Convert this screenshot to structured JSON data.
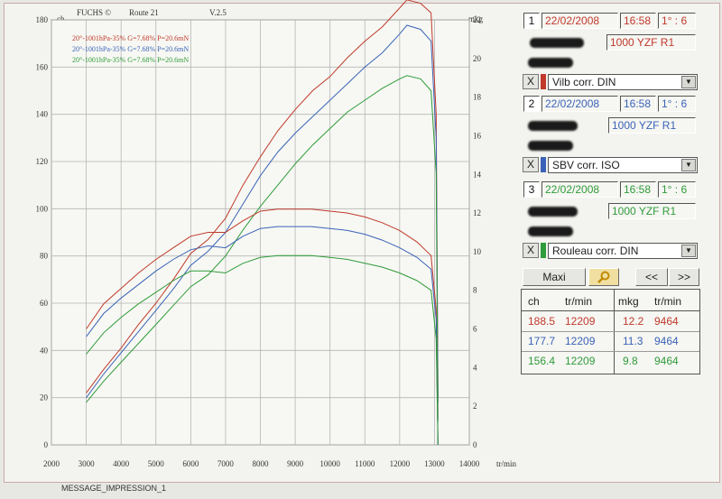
{
  "header": {
    "brand": "FUCHS ©",
    "route": "Route 21",
    "version": "V.2.5",
    "left_unit": "ch",
    "right_unit": "mkg",
    "x_unit": "tr/min"
  },
  "footer": "MESSAGE_IMPRESSION_1",
  "colors": {
    "red": "#c0392b",
    "blue": "#3a63b8",
    "green": "#2f9b3a"
  },
  "chart_data": {
    "type": "line",
    "title": "",
    "xlabel": "tr/min",
    "ylabel_left": "ch",
    "ylabel_right": "mkg",
    "xlim": [
      2000,
      14000
    ],
    "ylim_left": [
      0,
      180
    ],
    "ylim_right": [
      0,
      22
    ],
    "x_ticks": [
      2000,
      3000,
      4000,
      5000,
      6000,
      7000,
      8000,
      9000,
      10000,
      11000,
      12000,
      13000,
      14000
    ],
    "y_ticks_left": [
      0,
      20,
      40,
      60,
      80,
      100,
      120,
      140,
      160,
      180
    ],
    "y_ticks_right": [
      0,
      2,
      4,
      6,
      8,
      10,
      12,
      14,
      16,
      18,
      20,
      22
    ],
    "grid": true,
    "legend": [
      {
        "text": "20°-1001hPa-35% G=7.68% P=20.6mN",
        "color": "#c0392b"
      },
      {
        "text": "20°-1001hPa-35% G=7.68% P=20.6mN",
        "color": "#3a63b8"
      },
      {
        "text": "20°-1001hPa-35% G=7.68% P=20.6mN",
        "color": "#2f9b3a"
      }
    ],
    "series": [
      {
        "kind": "power",
        "axis": "left",
        "color": "#c0392b",
        "x": [
          3000,
          3500,
          4000,
          4500,
          5000,
          5500,
          6000,
          6500,
          7000,
          7500,
          8000,
          8500,
          9000,
          9500,
          10000,
          10500,
          11000,
          11500,
          12000,
          12209,
          12600,
          12900,
          13050,
          13100
        ],
        "y": [
          22,
          32,
          41,
          51,
          60,
          70,
          81,
          87,
          96,
          110,
          122,
          133,
          142,
          150,
          156,
          164,
          171,
          177,
          185,
          188.5,
          187,
          183,
          140,
          20
        ]
      },
      {
        "kind": "power",
        "axis": "left",
        "color": "#3a63b8",
        "x": [
          3000,
          3500,
          4000,
          4500,
          5000,
          5500,
          6000,
          6500,
          7000,
          7500,
          8000,
          8500,
          9000,
          9500,
          10000,
          10500,
          11000,
          11500,
          12000,
          12209,
          12600,
          12900,
          13050,
          13100
        ],
        "y": [
          20,
          30,
          39,
          48,
          57,
          66,
          76,
          82,
          90,
          102,
          114,
          124,
          132,
          139,
          146,
          153,
          160,
          166,
          174,
          177.7,
          176,
          171,
          130,
          18
        ]
      },
      {
        "kind": "power",
        "axis": "left",
        "color": "#2f9b3a",
        "x": [
          3000,
          3500,
          4000,
          4500,
          5000,
          5500,
          6000,
          6500,
          7000,
          7500,
          8000,
          8500,
          9000,
          9500,
          10000,
          10500,
          11000,
          11500,
          12000,
          12209,
          12600,
          12900,
          13050,
          13100
        ],
        "y": [
          18,
          27,
          35,
          43,
          51,
          59,
          67,
          72,
          80,
          91,
          101,
          110,
          119,
          127,
          134,
          141,
          146,
          151,
          155,
          156.4,
          155,
          150,
          115,
          10
        ]
      },
      {
        "kind": "torque",
        "axis": "right",
        "color": "#c0392b",
        "x": [
          3000,
          3500,
          4000,
          4500,
          5000,
          5500,
          6000,
          6500,
          7000,
          7500,
          8000,
          8500,
          9000,
          9464,
          10000,
          10500,
          11000,
          11500,
          12000,
          12500,
          12900,
          13050,
          13100
        ],
        "y": [
          6,
          7.3,
          8.1,
          8.9,
          9.6,
          10.2,
          10.8,
          11.0,
          11.0,
          11.6,
          12.1,
          12.2,
          12.2,
          12.2,
          12.1,
          12.0,
          11.8,
          11.5,
          11.1,
          10.5,
          9.8,
          7,
          0
        ]
      },
      {
        "kind": "torque",
        "axis": "right",
        "color": "#3a63b8",
        "x": [
          3000,
          3500,
          4000,
          4500,
          5000,
          5500,
          6000,
          6500,
          7000,
          7500,
          8000,
          8500,
          9000,
          9464,
          10000,
          10500,
          11000,
          11500,
          12000,
          12500,
          12900,
          13050,
          13100
        ],
        "y": [
          5.6,
          6.8,
          7.6,
          8.3,
          9.0,
          9.6,
          10.1,
          10.3,
          10.2,
          10.8,
          11.2,
          11.3,
          11.3,
          11.3,
          11.2,
          11.1,
          10.9,
          10.6,
          10.2,
          9.7,
          9.1,
          6.5,
          0
        ]
      },
      {
        "kind": "torque",
        "axis": "right",
        "color": "#2f9b3a",
        "x": [
          3000,
          3500,
          4000,
          4500,
          5000,
          5500,
          6000,
          6500,
          7000,
          7500,
          8000,
          8500,
          9000,
          9464,
          10000,
          10500,
          11000,
          11500,
          12000,
          12500,
          12900,
          13050,
          13100
        ],
        "y": [
          4.7,
          5.8,
          6.6,
          7.3,
          7.9,
          8.5,
          9.0,
          9.0,
          8.9,
          9.4,
          9.7,
          9.8,
          9.8,
          9.8,
          9.7,
          9.6,
          9.4,
          9.2,
          8.9,
          8.5,
          8.0,
          5.5,
          0
        ]
      }
    ]
  },
  "panel": {
    "runs": [
      {
        "num": "1",
        "date": "22/02/2008",
        "time": "16:58",
        "ratio": "1° : 6",
        "model": "1000 YZF R1",
        "correction": "Vilb corr. DIN",
        "color": "#c0392b"
      },
      {
        "num": "2",
        "date": "22/02/2008",
        "time": "16:58",
        "ratio": "1° : 6",
        "model": "1000 YZF R1",
        "correction": "SBV corr. ISO",
        "color": "#3a63b8"
      },
      {
        "num": "3",
        "date": "22/02/2008",
        "time": "16:58",
        "ratio": "1° : 6",
        "model": "1000 YZF R1",
        "correction": "Rouleau corr. DIN",
        "color": "#2f9b3a"
      }
    ],
    "close_label": "X",
    "buttons": {
      "maxi": "Maxi",
      "prev": "<<",
      "next": ">>"
    },
    "table": {
      "headers": [
        "ch",
        "tr/min",
        "mkg",
        "tr/min"
      ],
      "rows": [
        {
          "ch": "188.5",
          "ch_rpm": "12209",
          "mkg": "12.2",
          "mkg_rpm": "9464",
          "color": "#c0392b"
        },
        {
          "ch": "177.7",
          "ch_rpm": "12209",
          "mkg": "11.3",
          "mkg_rpm": "9464",
          "color": "#3a63b8"
        },
        {
          "ch": "156.4",
          "ch_rpm": "12209",
          "mkg": "9.8",
          "mkg_rpm": "9464",
          "color": "#2f9b3a"
        }
      ]
    }
  }
}
